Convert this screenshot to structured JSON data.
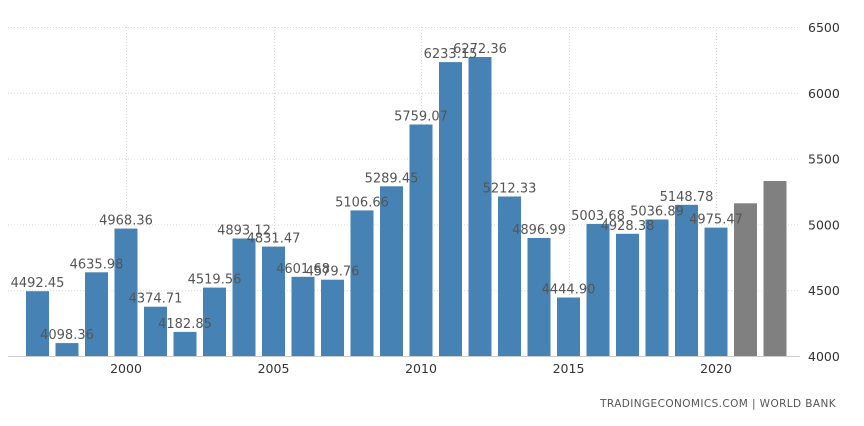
{
  "chart_data": {
    "type": "bar",
    "title": "",
    "xlabel": "",
    "ylabel": "",
    "ylim": [
      4000,
      6500
    ],
    "yticks": [
      4000,
      4500,
      5000,
      5500,
      6000,
      6500
    ],
    "xticks": [
      2000,
      2005,
      2010,
      2015,
      2020
    ],
    "grid": true,
    "y_axis_position": "right",
    "categories": [
      1997,
      1998,
      1999,
      2000,
      2001,
      2002,
      2003,
      2004,
      2005,
      2006,
      2007,
      2008,
      2009,
      2010,
      2011,
      2012,
      2013,
      2014,
      2015,
      2016,
      2017,
      2018,
      2019,
      2020,
      2021,
      2022
    ],
    "values": [
      4492.45,
      4098.36,
      4635.98,
      4968.36,
      4374.71,
      4182.85,
      4519.56,
      4893.12,
      4831.47,
      4601.68,
      4579.76,
      5106.66,
      5289.45,
      5759.07,
      6233.15,
      6272.36,
      5212.33,
      4896.99,
      4444.9,
      5003.68,
      4928.38,
      5036.89,
      5148.78,
      4975.47,
      5160,
      5330
    ],
    "value_labels": [
      "4492.45",
      "4098.36",
      "4635.98",
      "4968.36",
      "4374.71",
      "4182.85",
      "4519.56",
      "4893.12",
      "4831.47",
      "4601.68",
      "4579.76",
      "5106.66",
      "5289.45",
      "5759.07",
      "6233.15",
      "6272.36",
      "5212.33",
      "4896.99",
      "4444.90",
      "5003.68",
      "4928.38",
      "5036.89",
      "5148.78",
      "4975.47",
      "",
      ""
    ],
    "forecast": [
      false,
      false,
      false,
      false,
      false,
      false,
      false,
      false,
      false,
      false,
      false,
      false,
      false,
      false,
      false,
      false,
      false,
      false,
      false,
      false,
      false,
      false,
      false,
      false,
      true,
      true
    ],
    "colors": {
      "actual": "#4682b4",
      "forecast": "#808080",
      "grid": "#d9d9d9",
      "axis": "#cccccc"
    }
  },
  "source_text": "TRADINGECONOMICS.COM  |  WORLD BANK"
}
